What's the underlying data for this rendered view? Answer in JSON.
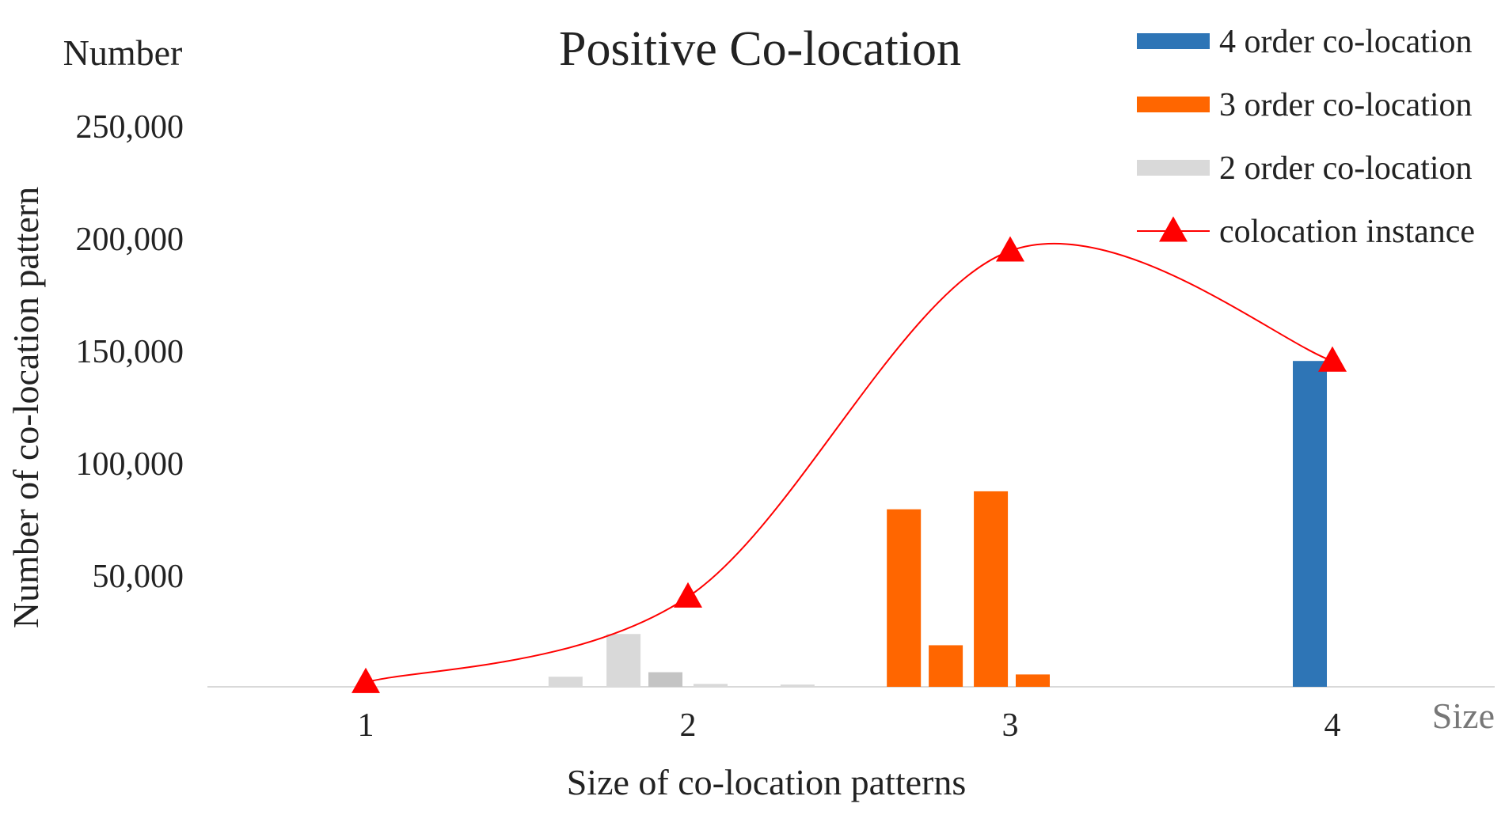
{
  "chart_data": {
    "type": "bar",
    "title": "Positive Co-location",
    "ylabel": "Number of co-location pattern",
    "y_corner_label": "Number",
    "xlabel": "Size of co-location patterns",
    "x_corner_label": "Size",
    "x_ticks": [
      "1",
      "2",
      "3",
      "4"
    ],
    "y_ticks": [
      "50,000",
      "100,000",
      "150,000",
      "200,000",
      "250,000"
    ],
    "ylim": [
      0,
      250000
    ],
    "grid": false,
    "legend_position": "top-right",
    "legend": [
      {
        "label": "4 order co-location",
        "color": "#2E75B6",
        "kind": "bar"
      },
      {
        "label": "3 order co-location",
        "color": "#FF6600",
        "kind": "bar"
      },
      {
        "label": "2 order co-location",
        "color": "#D9D9D9",
        "kind": "bar"
      },
      {
        "label": "colocation instance",
        "color": "#FF0000",
        "kind": "line-triangle"
      }
    ],
    "series": [
      {
        "name": "2 order co-location",
        "color": "#D9D9D9",
        "bars": [
          {
            "x": 1.62,
            "value": 4500,
            "color": "#D9D9D9"
          },
          {
            "x": 1.8,
            "value": 23500,
            "color": "#D9D9D9"
          },
          {
            "x": 1.93,
            "value": 6500,
            "color": "#C4C4C4"
          },
          {
            "x": 2.07,
            "value": 1300,
            "color": "#D9D9D9"
          },
          {
            "x": 2.34,
            "value": 1000,
            "color": "#D9D9D9"
          }
        ]
      },
      {
        "name": "3 order co-location",
        "color": "#FF6600",
        "bars": [
          {
            "x": 2.67,
            "value": 79000,
            "color": "#FF6600"
          },
          {
            "x": 2.8,
            "value": 18500,
            "color": "#FF6600"
          },
          {
            "x": 2.94,
            "value": 87000,
            "color": "#FF6600"
          },
          {
            "x": 3.07,
            "value": 5500,
            "color": "#FF6600"
          }
        ]
      },
      {
        "name": "4 order co-location",
        "color": "#2E75B6",
        "bars": [
          {
            "x": 3.93,
            "value": 145000,
            "color": "#2E75B6"
          }
        ]
      }
    ],
    "line_series": {
      "name": "colocation instance",
      "color": "#FF0000",
      "points": [
        {
          "x": 1,
          "y": 2000
        },
        {
          "x": 2,
          "y": 40000
        },
        {
          "x": 3,
          "y": 194000
        },
        {
          "x": 4,
          "y": 145000
        }
      ]
    }
  }
}
